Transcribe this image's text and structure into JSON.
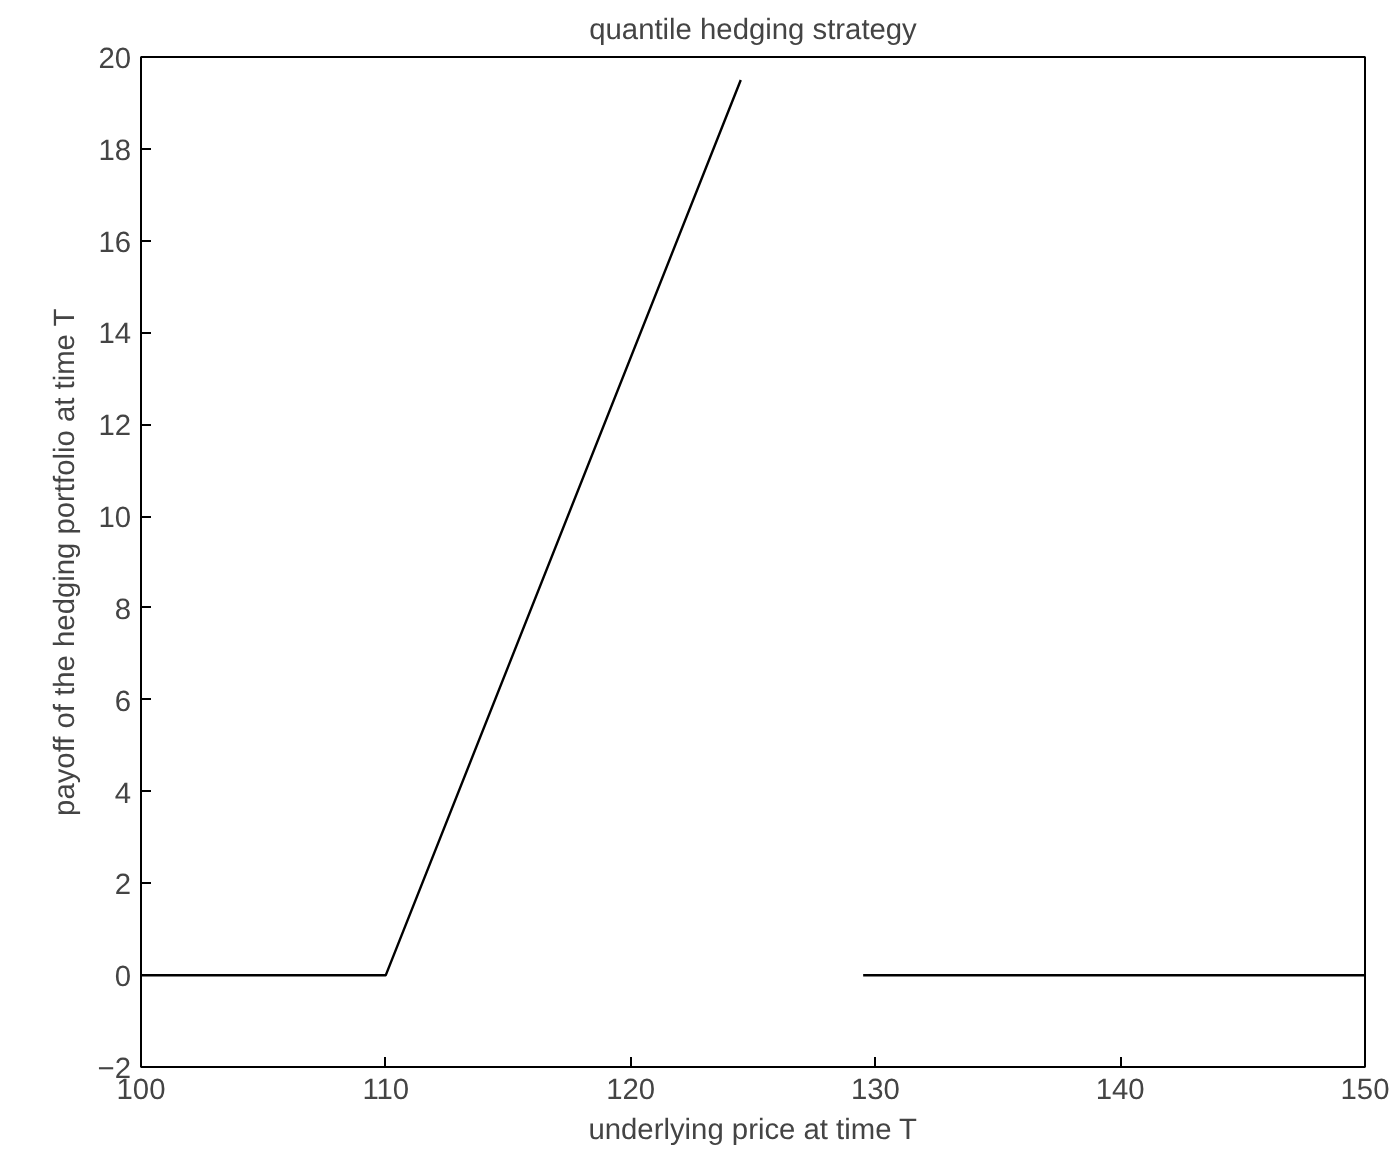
{
  "chart_data": {
    "type": "line",
    "title": "quantile hedging strategy",
    "xlabel": "underlying price at time T",
    "ylabel": "payoff of the hedging portfolio at time T",
    "series": [
      {
        "color": "#000000",
        "x": [
          100,
          110,
          124.5
        ],
        "values": [
          0,
          0,
          19.5
        ]
      },
      {
        "color": "#000000",
        "x": [
          129.5,
          150
        ],
        "values": [
          0,
          0
        ]
      }
    ],
    "xlim": [
      100,
      150
    ],
    "xticks": [
      100,
      110,
      120,
      130,
      140,
      150
    ],
    "ylim": [
      -2,
      20
    ],
    "yticks": [
      {
        "value": -2,
        "label": "−2"
      },
      0,
      2,
      4,
      6,
      8,
      10,
      12,
      14,
      16,
      18,
      20
    ],
    "grid": false,
    "marker": "none",
    "line_style": "solid"
  }
}
